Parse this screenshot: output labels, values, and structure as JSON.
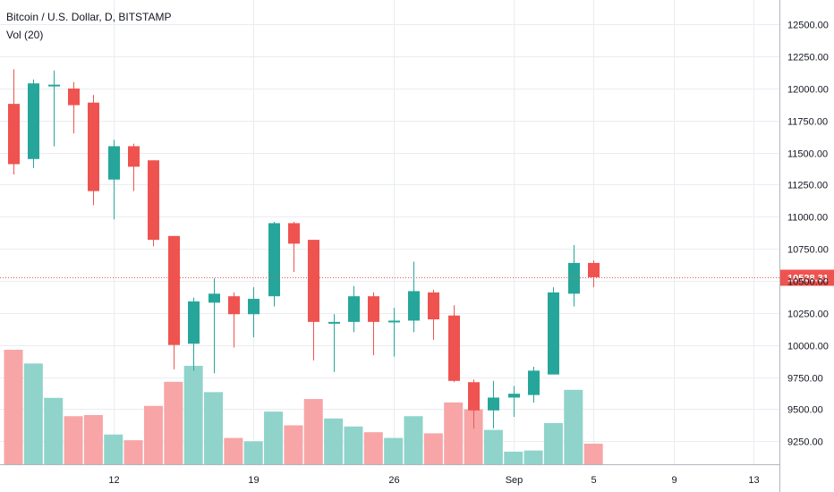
{
  "header": {
    "symbol_title": "Bitcoin / U.S. Dollar, D, BITSTAMP",
    "volume_label": "Vol (20)"
  },
  "colors": {
    "up": "#26a69a",
    "down": "#ef5350",
    "up_volume": "#8fd3cb",
    "down_volume": "#f7a5a7",
    "grid": "#e9ecf1",
    "axis_text": "#131722",
    "price_line": "#ef5350"
  },
  "chart_data": {
    "type": "candlestick",
    "title": "Bitcoin / U.S. Dollar, D, BITSTAMP",
    "volume_indicator": "Vol (20)",
    "y_range": [
      9070,
      12690
    ],
    "y_ticks": [
      "12500.00",
      "12250.00",
      "12000.00",
      "11750.00",
      "11500.00",
      "11250.00",
      "11000.00",
      "10750.00",
      "10500.00",
      "10250.00",
      "10000.00",
      "9750.00",
      "9500.00",
      "9250.00"
    ],
    "y_tick_values": [
      12500,
      12250,
      12000,
      11750,
      11500,
      11250,
      11000,
      10750,
      10500,
      10250,
      10000,
      9750,
      9500,
      9250
    ],
    "x_ticks": [
      {
        "label": "12",
        "bar": 5
      },
      {
        "label": "19",
        "bar": 12
      },
      {
        "label": "26",
        "bar": 19
      },
      {
        "label": "Sep",
        "bar": 25
      },
      {
        "label": "5",
        "bar": 29
      },
      {
        "label": "9",
        "bar": 33
      },
      {
        "label": "13",
        "bar": 37
      }
    ],
    "last_price": 10528.31,
    "last_price_label": "10528.31",
    "grid": true,
    "candles": [
      {
        "o": 11880,
        "h": 12150,
        "l": 11330,
        "c": 11410
      },
      {
        "o": 11450,
        "h": 12070,
        "l": 11380,
        "c": 12040
      },
      {
        "o": 12020,
        "h": 12140,
        "l": 11550,
        "c": 12030
      },
      {
        "o": 12000,
        "h": 12050,
        "l": 11650,
        "c": 11870
      },
      {
        "o": 11890,
        "h": 11950,
        "l": 11090,
        "c": 11200
      },
      {
        "o": 11290,
        "h": 11600,
        "l": 10980,
        "c": 11550
      },
      {
        "o": 11550,
        "h": 11570,
        "l": 11200,
        "c": 11390
      },
      {
        "o": 11440,
        "h": 11440,
        "l": 10770,
        "c": 10820
      },
      {
        "o": 10850,
        "h": 10850,
        "l": 9810,
        "c": 10000
      },
      {
        "o": 10010,
        "h": 10370,
        "l": 9800,
        "c": 10340
      },
      {
        "o": 10330,
        "h": 10520,
        "l": 9780,
        "c": 10400
      },
      {
        "o": 10380,
        "h": 10410,
        "l": 9980,
        "c": 10240
      },
      {
        "o": 10240,
        "h": 10450,
        "l": 10060,
        "c": 10360
      },
      {
        "o": 10380,
        "h": 10960,
        "l": 10300,
        "c": 10950
      },
      {
        "o": 10950,
        "h": 10960,
        "l": 10570,
        "c": 10790
      },
      {
        "o": 10820,
        "h": 10820,
        "l": 9880,
        "c": 10180
      },
      {
        "o": 10180,
        "h": 10240,
        "l": 9790,
        "c": 10180
      },
      {
        "o": 10180,
        "h": 10460,
        "l": 10100,
        "c": 10380
      },
      {
        "o": 10380,
        "h": 10410,
        "l": 9920,
        "c": 10180
      },
      {
        "o": 10180,
        "h": 10290,
        "l": 9910,
        "c": 10190
      },
      {
        "o": 10190,
        "h": 10650,
        "l": 10100,
        "c": 10420
      },
      {
        "o": 10410,
        "h": 10430,
        "l": 10040,
        "c": 10200
      },
      {
        "o": 10230,
        "h": 10310,
        "l": 9710,
        "c": 9720
      },
      {
        "o": 9710,
        "h": 9730,
        "l": 9350,
        "c": 9490
      },
      {
        "o": 9490,
        "h": 9720,
        "l": 9350,
        "c": 9590
      },
      {
        "o": 9590,
        "h": 9680,
        "l": 9440,
        "c": 9620
      },
      {
        "o": 9610,
        "h": 9830,
        "l": 9550,
        "c": 9800
      },
      {
        "o": 9770,
        "h": 10450,
        "l": 9770,
        "c": 10410
      },
      {
        "o": 10400,
        "h": 10780,
        "l": 10300,
        "c": 10640
      },
      {
        "o": 10640,
        "h": 10660,
        "l": 10450,
        "c": 10528.31
      }
    ],
    "volumes": [
      100,
      88,
      58,
      42,
      43,
      26,
      21,
      51,
      72,
      86,
      63,
      23,
      20,
      46,
      34,
      57,
      40,
      33,
      28,
      23,
      42,
      27,
      54,
      48,
      30,
      11,
      12,
      36,
      65,
      18
    ]
  }
}
